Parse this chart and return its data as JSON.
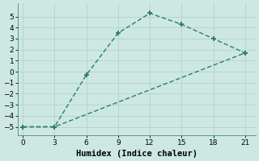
{
  "line1_x": [
    0,
    3,
    6,
    9,
    12,
    15,
    18,
    21
  ],
  "line1_y": [
    -5,
    -5,
    -0.3,
    3.5,
    5.3,
    4.3,
    3.0,
    1.7
  ],
  "line2_x": [
    0,
    3,
    21
  ],
  "line2_y": [
    -5,
    -5,
    1.7
  ],
  "color": "#2a7d6e",
  "bg_color": "#cde8e2",
  "grid_color": "#b8d4ce",
  "xlabel": "Humidex (Indice chaleur)",
  "xlim": [
    -0.5,
    22
  ],
  "ylim": [
    -5.8,
    6.2
  ],
  "xticks": [
    0,
    3,
    6,
    9,
    12,
    15,
    18,
    21
  ],
  "yticks": [
    -5,
    -4,
    -3,
    -2,
    -1,
    0,
    1,
    2,
    3,
    4,
    5
  ],
  "marker": "+",
  "markersize": 5,
  "linewidth": 1.0,
  "markeredgewidth": 1.3,
  "xlabel_fontsize": 7.5,
  "tick_fontsize": 6.5
}
